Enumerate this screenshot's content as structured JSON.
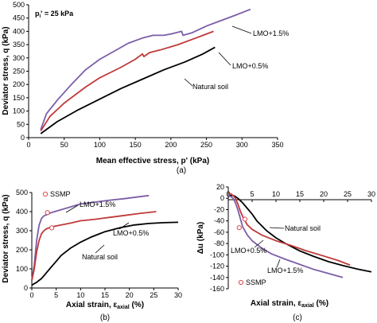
{
  "chart_data": [
    {
      "type": "line",
      "caption": "(a)",
      "xlabel": "Mean effective stress, p' (kPa)",
      "ylabel": "Deviator stress, q (kPa)",
      "xlim": [
        0,
        350
      ],
      "ylim": [
        0,
        500
      ],
      "xticks": [
        0,
        50,
        100,
        150,
        200,
        250,
        300,
        350
      ],
      "yticks": [
        0,
        50,
        100,
        150,
        200,
        250,
        300,
        350,
        400,
        450,
        500
      ],
      "pressure_label": "p",
      "pressure_sub": "i",
      "pressure_value": "' = 25 kPa",
      "series": [
        {
          "name": "LMO+1.5%",
          "color": "#7b5ea7",
          "x": [
            17,
            25,
            40,
            60,
            80,
            100,
            120,
            140,
            160,
            175,
            190,
            200,
            215,
            217,
            230,
            250,
            270,
            290,
            312
          ],
          "y": [
            30,
            90,
            140,
            200,
            255,
            295,
            325,
            355,
            375,
            385,
            385,
            390,
            400,
            385,
            395,
            420,
            440,
            460,
            483
          ]
        },
        {
          "name": "LMO+0.5%",
          "color": "#c0393b",
          "x": [
            17,
            30,
            50,
            80,
            100,
            130,
            150,
            160,
            162,
            170,
            185,
            210,
            235,
            260
          ],
          "y": [
            25,
            80,
            130,
            190,
            225,
            265,
            295,
            315,
            305,
            320,
            330,
            350,
            375,
            400
          ]
        },
        {
          "name": "Natural soil",
          "color": "#000000",
          "x": [
            17,
            40,
            70,
            100,
            130,
            160,
            190,
            220,
            245,
            262
          ],
          "y": [
            15,
            60,
            105,
            145,
            185,
            220,
            255,
            285,
            315,
            340
          ]
        }
      ]
    },
    {
      "type": "line",
      "caption": "(b)",
      "xlabel": "Axial strain, ε",
      "xlabel_sub": "axial",
      "xlabel_unit": " (%)",
      "ylabel": "Deviator stress, q (kPa)",
      "xlim": [
        0,
        30
      ],
      "ylim": [
        0,
        500
      ],
      "xticks": [
        0,
        5,
        10,
        15,
        20,
        25,
        30
      ],
      "yticks": [
        0,
        100,
        200,
        300,
        400,
        500
      ],
      "legend": "SSMP",
      "series": [
        {
          "name": "LMO+1.5%",
          "color": "#7b5ea7",
          "x": [
            0,
            0.5,
            1,
            1.5,
            2,
            2.5,
            3.2,
            4,
            6,
            8,
            10,
            13,
            16,
            19,
            22,
            24
          ],
          "y": [
            40,
            120,
            250,
            330,
            365,
            378,
            385,
            395,
            410,
            425,
            440,
            450,
            460,
            468,
            478,
            484
          ]
        },
        {
          "name": "LMO+0.5%",
          "color": "#c0393b",
          "x": [
            0,
            0.5,
            1,
            1.5,
            2,
            2.5,
            3,
            4,
            6,
            8,
            10,
            13,
            16,
            19,
            22,
            25.5
          ],
          "y": [
            40,
            100,
            190,
            250,
            285,
            300,
            310,
            320,
            330,
            340,
            352,
            360,
            370,
            380,
            390,
            400
          ]
        },
        {
          "name": "Natural soil",
          "color": "#000000",
          "x": [
            0,
            1,
            2,
            3,
            4,
            5,
            6,
            8,
            10,
            12,
            15,
            18,
            21,
            24,
            27,
            30
          ],
          "y": [
            15,
            30,
            50,
            80,
            110,
            140,
            170,
            210,
            240,
            265,
            295,
            315,
            330,
            338,
            342,
            344
          ]
        }
      ],
      "ssmp_points": [
        {
          "x": 3.2,
          "y": 395
        },
        {
          "x": 4.1,
          "y": 315
        }
      ]
    },
    {
      "type": "line",
      "caption": "(c)",
      "xlabel": "Axial strain, ε",
      "xlabel_sub": "axial",
      "xlabel_unit": " (%)",
      "ylabel": "Δu (kPa)",
      "xlim": [
        0,
        30
      ],
      "ylim": [
        -160,
        20
      ],
      "xticks": [
        0,
        5,
        10,
        15,
        20,
        25,
        30
      ],
      "yticks": [
        20,
        0,
        -20,
        -40,
        -60,
        -80,
        -100,
        -120,
        -140,
        -160
      ],
      "legend": "SSMP",
      "series": [
        {
          "name": "Natural soil",
          "color": "#000000",
          "x": [
            0,
            0.5,
            1,
            1.5,
            2,
            3,
            4,
            5,
            6,
            8,
            10,
            12,
            15,
            18,
            21,
            24,
            27,
            30
          ],
          "y": [
            3,
            5,
            5,
            3,
            0,
            -8,
            -18,
            -28,
            -40,
            -57,
            -70,
            -80,
            -93,
            -103,
            -112,
            -119,
            -125,
            -130
          ]
        },
        {
          "name": "LMO+0.5%",
          "color": "#c0393b",
          "x": [
            0,
            0.5,
            1,
            1.5,
            2,
            2.5,
            3,
            3.5,
            4,
            5,
            7,
            10,
            13,
            16,
            20,
            23,
            25.5
          ],
          "y": [
            8,
            8,
            5,
            0,
            -10,
            -22,
            -32,
            -40,
            -47,
            -55,
            -65,
            -75,
            -83,
            -92,
            -102,
            -110,
            -118
          ]
        },
        {
          "name": "LMO+1.5%",
          "color": "#7b5ea7",
          "x": [
            0,
            0.5,
            1,
            1.5,
            2,
            2.5,
            3,
            4,
            5,
            7,
            9,
            12,
            15,
            18,
            21,
            24
          ],
          "y": [
            5,
            3,
            0,
            -8,
            -20,
            -35,
            -50,
            -65,
            -75,
            -88,
            -98,
            -108,
            -117,
            -126,
            -133,
            -140
          ]
        }
      ],
      "ssmp_points": [
        {
          "x": 3.5,
          "y": -37
        },
        {
          "x": 2.3,
          "y": -52
        }
      ]
    }
  ]
}
